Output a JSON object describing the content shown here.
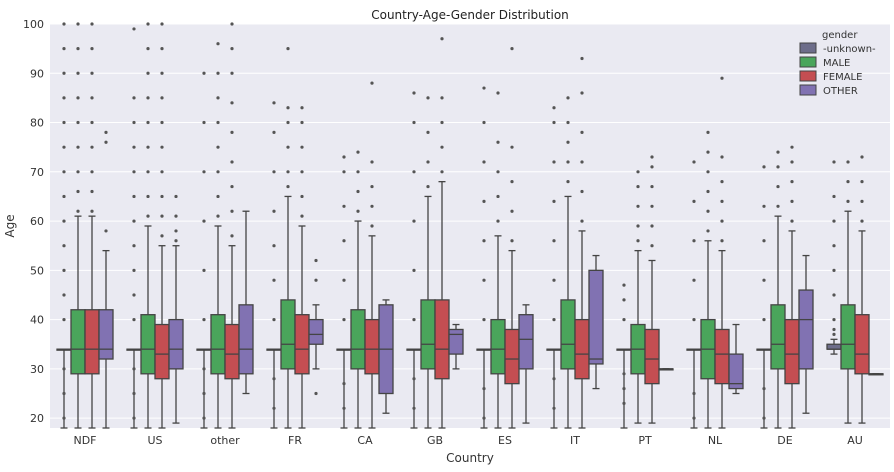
{
  "chart_data": {
    "type": "box",
    "title": "Country-Age-Gender Distribution",
    "xlabel": "Country",
    "ylabel": "Age",
    "ylim": [
      18,
      100
    ],
    "yticks": [
      20,
      30,
      40,
      50,
      60,
      70,
      80,
      90,
      100
    ],
    "grid": true,
    "legend": {
      "title": "gender",
      "position": "top-right"
    },
    "categories": [
      "NDF",
      "US",
      "other",
      "FR",
      "CA",
      "GB",
      "ES",
      "IT",
      "PT",
      "NL",
      "DE",
      "AU"
    ],
    "series": [
      {
        "name": "-unknown-",
        "color": "#6d6d8a",
        "boxes": [
          {
            "low": 18,
            "q1": 34,
            "median": 34,
            "q3": 34,
            "high": 34,
            "outliers": [
              20,
              25,
              30,
              40,
              45,
              50,
              55,
              60,
              65,
              70,
              75,
              80,
              85,
              90,
              95,
              100
            ]
          },
          {
            "low": 18,
            "q1": 34,
            "median": 34,
            "q3": 34,
            "high": 34,
            "outliers": [
              20,
              25,
              30,
              40,
              45,
              50,
              55,
              60,
              65,
              70,
              75,
              80,
              85,
              99
            ]
          },
          {
            "low": 18,
            "q1": 34,
            "median": 34,
            "q3": 34,
            "high": 34,
            "outliers": [
              20,
              25,
              30,
              40,
              50,
              60,
              70,
              80,
              90
            ]
          },
          {
            "low": 18,
            "q1": 34,
            "median": 34,
            "q3": 34,
            "high": 34,
            "outliers": [
              22,
              28,
              40,
              48,
              55,
              62,
              70,
              78,
              84
            ]
          },
          {
            "low": 18,
            "q1": 34,
            "median": 34,
            "q3": 34,
            "high": 34,
            "outliers": [
              22,
              27,
              40,
              48,
              56,
              63,
              70,
              73
            ]
          },
          {
            "low": 18,
            "q1": 34,
            "median": 34,
            "q3": 34,
            "high": 34,
            "outliers": [
              22,
              28,
              40,
              50,
              60,
              70,
              80,
              86
            ]
          },
          {
            "low": 18,
            "q1": 34,
            "median": 34,
            "q3": 34,
            "high": 34,
            "outliers": [
              20,
              26,
              40,
              48,
              56,
              64,
              72,
              80,
              87
            ]
          },
          {
            "low": 18,
            "q1": 34,
            "median": 34,
            "q3": 34,
            "high": 34,
            "outliers": [
              22,
              28,
              40,
              48,
              56,
              64,
              72,
              80,
              83
            ]
          },
          {
            "low": 18,
            "q1": 34,
            "median": 34,
            "q3": 34,
            "high": 34,
            "outliers": [
              23,
              26,
              29,
              40,
              44,
              47
            ]
          },
          {
            "low": 18,
            "q1": 34,
            "median": 34,
            "q3": 34,
            "high": 34,
            "outliers": [
              20,
              25,
              40,
              48,
              56,
              64,
              72
            ]
          },
          {
            "low": 18,
            "q1": 34,
            "median": 34,
            "q3": 34,
            "high": 34,
            "outliers": [
              20,
              26,
              40,
              48,
              56,
              63,
              71
            ]
          },
          {
            "low": 33,
            "q1": 34,
            "median": 34,
            "q3": 35,
            "high": 36,
            "outliers": [
              37,
              38,
              40,
              45,
              50,
              55,
              60,
              65,
              72
            ]
          }
        ]
      },
      {
        "name": "MALE",
        "color": "#4aa55b",
        "boxes": [
          {
            "low": 18,
            "q1": 29,
            "median": 34,
            "q3": 42,
            "high": 61,
            "outliers": [
              62,
              66,
              70,
              75,
              80,
              85,
              90,
              95,
              100
            ]
          },
          {
            "low": 18,
            "q1": 29,
            "median": 34,
            "q3": 41,
            "high": 59,
            "outliers": [
              61,
              65,
              70,
              75,
              80,
              85,
              90,
              95,
              100
            ]
          },
          {
            "low": 18,
            "q1": 29,
            "median": 34,
            "q3": 41,
            "high": 59,
            "outliers": [
              61,
              65,
              70,
              75,
              80,
              85,
              90,
              96
            ]
          },
          {
            "low": 18,
            "q1": 30,
            "median": 35,
            "q3": 44,
            "high": 65,
            "outliers": [
              67,
              70,
              75,
              80,
              83,
              95
            ]
          },
          {
            "low": 18,
            "q1": 30,
            "median": 34,
            "q3": 42,
            "high": 60,
            "outliers": [
              62,
              66,
              70,
              74
            ]
          },
          {
            "low": 18,
            "q1": 30,
            "median": 35,
            "q3": 44,
            "high": 65,
            "outliers": [
              67,
              72,
              78,
              85
            ]
          },
          {
            "low": 18,
            "q1": 29,
            "median": 34,
            "q3": 40,
            "high": 57,
            "outliers": [
              60,
              65,
              70,
              76,
              86
            ]
          },
          {
            "low": 18,
            "q1": 30,
            "median": 35,
            "q3": 44,
            "high": 65,
            "outliers": [
              68,
              72,
              76,
              80,
              85
            ]
          },
          {
            "low": 19,
            "q1": 29,
            "median": 34,
            "q3": 39,
            "high": 54,
            "outliers": [
              56,
              59,
              63,
              67,
              70
            ]
          },
          {
            "low": 18,
            "q1": 28,
            "median": 34,
            "q3": 40,
            "high": 56,
            "outliers": [
              58,
              62,
              66,
              70,
              74,
              78
            ]
          },
          {
            "low": 18,
            "q1": 30,
            "median": 35,
            "q3": 43,
            "high": 61,
            "outliers": [
              63,
              67,
              71,
              74
            ]
          },
          {
            "low": 19,
            "q1": 30,
            "median": 35,
            "q3": 43,
            "high": 62,
            "outliers": [
              64,
              68,
              72
            ]
          }
        ]
      },
      {
        "name": "FEMALE",
        "color": "#c44e52",
        "boxes": [
          {
            "low": 18,
            "q1": 29,
            "median": 34,
            "q3": 42,
            "high": 61,
            "outliers": [
              62,
              66,
              70,
              75,
              80,
              85,
              90,
              95,
              100
            ]
          },
          {
            "low": 18,
            "q1": 28,
            "median": 33,
            "q3": 39,
            "high": 55,
            "outliers": [
              57,
              61,
              65,
              70,
              75,
              80,
              85,
              90,
              95,
              100
            ]
          },
          {
            "low": 18,
            "q1": 28,
            "median": 33,
            "q3": 39,
            "high": 55,
            "outliers": [
              57,
              62,
              67,
              72,
              78,
              84,
              90,
              95,
              100
            ]
          },
          {
            "low": 18,
            "q1": 29,
            "median": 34,
            "q3": 41,
            "high": 59,
            "outliers": [
              61,
              65,
              70,
              75,
              80,
              83
            ]
          },
          {
            "low": 18,
            "q1": 29,
            "median": 34,
            "q3": 40,
            "high": 57,
            "outliers": [
              59,
              63,
              67,
              72,
              88
            ]
          },
          {
            "low": 18,
            "q1": 28,
            "median": 34,
            "q3": 44,
            "high": 68,
            "outliers": [
              70,
              75,
              80,
              85,
              97
            ]
          },
          {
            "low": 18,
            "q1": 27,
            "median": 32,
            "q3": 38,
            "high": 54,
            "outliers": [
              56,
              62,
              68,
              75,
              95
            ]
          },
          {
            "low": 18,
            "q1": 28,
            "median": 33,
            "q3": 40,
            "high": 58,
            "outliers": [
              60,
              66,
              72,
              78,
              86,
              93
            ]
          },
          {
            "low": 19,
            "q1": 27,
            "median": 32,
            "q3": 38,
            "high": 52,
            "outliers": [
              55,
              59,
              63,
              67,
              71,
              73
            ]
          },
          {
            "low": 18,
            "q1": 27,
            "median": 33,
            "q3": 38,
            "high": 54,
            "outliers": [
              56,
              60,
              64,
              68,
              73,
              89
            ]
          },
          {
            "low": 18,
            "q1": 27,
            "median": 33,
            "q3": 40,
            "high": 58,
            "outliers": [
              60,
              64,
              68,
              72,
              75
            ]
          },
          {
            "low": 19,
            "q1": 29,
            "median": 33,
            "q3": 41,
            "high": 58,
            "outliers": [
              60,
              64,
              68,
              73
            ]
          }
        ]
      },
      {
        "name": "OTHER",
        "color": "#8172b2",
        "boxes": [
          {
            "low": 18,
            "q1": 32,
            "median": 34,
            "q3": 42,
            "high": 54,
            "outliers": [
              58,
              76,
              78
            ]
          },
          {
            "low": 19,
            "q1": 30,
            "median": 34,
            "q3": 40,
            "high": 55,
            "outliers": [
              56,
              58,
              61,
              65
            ]
          },
          {
            "low": 25,
            "q1": 29,
            "median": 34,
            "q3": 43,
            "high": 62,
            "outliers": []
          },
          {
            "low": 30,
            "q1": 35,
            "median": 37,
            "q3": 40,
            "high": 43,
            "outliers": [
              25,
              48,
              52
            ]
          },
          {
            "low": 21,
            "q1": 25,
            "median": 34,
            "q3": 43,
            "high": 44,
            "outliers": []
          },
          {
            "low": 30,
            "q1": 33,
            "median": 37,
            "q3": 38,
            "high": 39,
            "outliers": []
          },
          {
            "low": 19,
            "q1": 30,
            "median": 36,
            "q3": 41,
            "high": 43,
            "outliers": []
          },
          {
            "low": 26,
            "q1": 31,
            "median": 32,
            "q3": 50,
            "high": 53,
            "outliers": []
          },
          {
            "low": 30,
            "q1": 30,
            "median": 30,
            "q3": 30,
            "high": 30,
            "outliers": []
          },
          {
            "low": 25,
            "q1": 26,
            "median": 27,
            "q3": 33,
            "high": 39,
            "outliers": []
          },
          {
            "low": 21,
            "q1": 30,
            "median": 40,
            "q3": 46,
            "high": 53,
            "outliers": []
          },
          {
            "low": 29,
            "q1": 29,
            "median": 29,
            "q3": 29,
            "high": 29,
            "outliers": []
          }
        ]
      }
    ]
  }
}
